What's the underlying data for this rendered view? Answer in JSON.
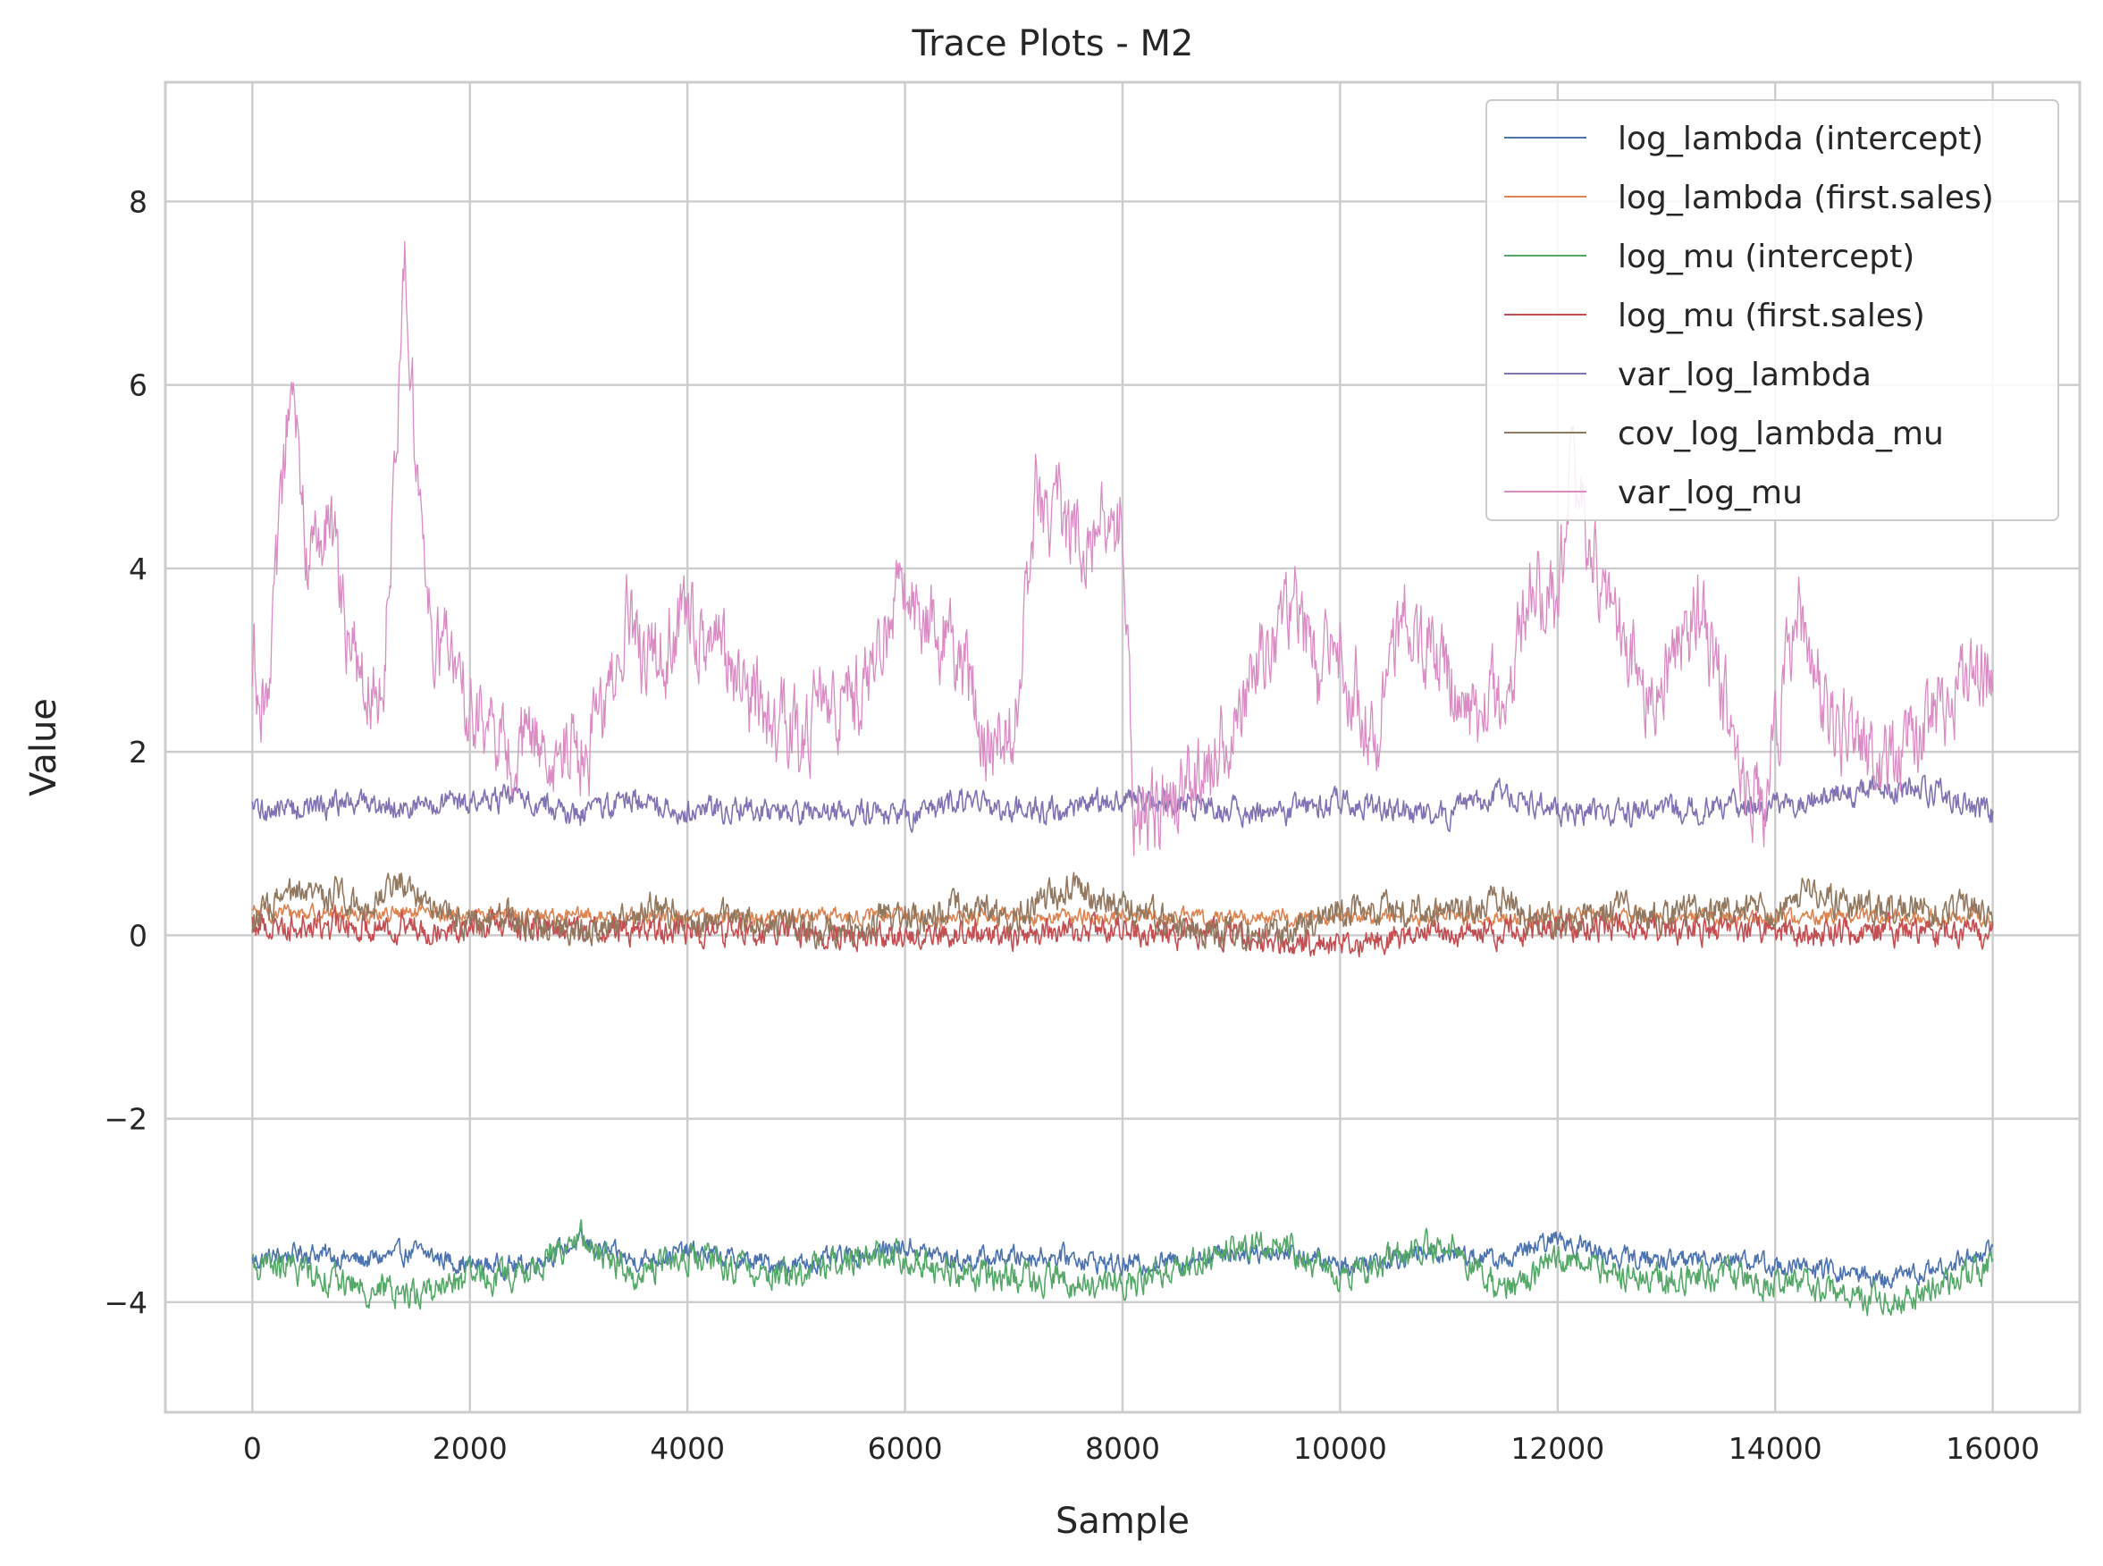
{
  "chart_data": {
    "type": "line",
    "title": "Trace Plots - M2",
    "xlabel": "Sample",
    "ylabel": "Value",
    "xlim": [
      -800,
      16800
    ],
    "ylim": [
      -5.2,
      9.3
    ],
    "xticks": [
      0,
      2000,
      4000,
      6000,
      8000,
      10000,
      12000,
      14000,
      16000
    ],
    "yticks": [
      -4,
      -2,
      0,
      2,
      4,
      6,
      8
    ],
    "grid": true,
    "legend_position": "top-right",
    "n_samples": 16000,
    "series": [
      {
        "name": "log_lambda (intercept)",
        "color": "#4c72b0",
        "anchors": [
          [
            0,
            -3.55
          ],
          [
            500,
            -3.45
          ],
          [
            1000,
            -3.55
          ],
          [
            1500,
            -3.45
          ],
          [
            2000,
            -3.6
          ],
          [
            2500,
            -3.6
          ],
          [
            3000,
            -3.35
          ],
          [
            3500,
            -3.55
          ],
          [
            4000,
            -3.45
          ],
          [
            4500,
            -3.55
          ],
          [
            5000,
            -3.6
          ],
          [
            5500,
            -3.5
          ],
          [
            6000,
            -3.4
          ],
          [
            6500,
            -3.55
          ],
          [
            7000,
            -3.5
          ],
          [
            7500,
            -3.5
          ],
          [
            8000,
            -3.6
          ],
          [
            8500,
            -3.55
          ],
          [
            9000,
            -3.45
          ],
          [
            9500,
            -3.45
          ],
          [
            10000,
            -3.6
          ],
          [
            10500,
            -3.5
          ],
          [
            11000,
            -3.45
          ],
          [
            11500,
            -3.55
          ],
          [
            12000,
            -3.3
          ],
          [
            12500,
            -3.5
          ],
          [
            13000,
            -3.55
          ],
          [
            13500,
            -3.5
          ],
          [
            14000,
            -3.6
          ],
          [
            14500,
            -3.65
          ],
          [
            15000,
            -3.75
          ],
          [
            15500,
            -3.65
          ],
          [
            16000,
            -3.4
          ]
        ],
        "noise": 0.09,
        "width": 1.6
      },
      {
        "name": "log_lambda (first.sales)",
        "color": "#dd8452",
        "anchors": [
          [
            0,
            0.25
          ],
          [
            4000,
            0.2
          ],
          [
            8000,
            0.2
          ],
          [
            12000,
            0.2
          ],
          [
            16000,
            0.2
          ]
        ],
        "noise": 0.07,
        "width": 1.6
      },
      {
        "name": "log_mu (intercept)",
        "color": "#55a868",
        "anchors": [
          [
            0,
            -3.6
          ],
          [
            500,
            -3.65
          ],
          [
            1000,
            -3.85
          ],
          [
            1500,
            -3.9
          ],
          [
            2000,
            -3.75
          ],
          [
            2500,
            -3.7
          ],
          [
            3000,
            -3.3
          ],
          [
            3500,
            -3.7
          ],
          [
            4000,
            -3.5
          ],
          [
            4500,
            -3.65
          ],
          [
            5000,
            -3.7
          ],
          [
            5500,
            -3.5
          ],
          [
            6000,
            -3.5
          ],
          [
            6500,
            -3.7
          ],
          [
            7000,
            -3.7
          ],
          [
            7500,
            -3.8
          ],
          [
            8000,
            -3.8
          ],
          [
            8500,
            -3.6
          ],
          [
            9000,
            -3.4
          ],
          [
            9500,
            -3.35
          ],
          [
            10000,
            -3.75
          ],
          [
            10500,
            -3.5
          ],
          [
            11000,
            -3.35
          ],
          [
            11500,
            -3.9
          ],
          [
            12000,
            -3.5
          ],
          [
            12500,
            -3.65
          ],
          [
            13000,
            -3.75
          ],
          [
            13500,
            -3.7
          ],
          [
            14000,
            -3.8
          ],
          [
            14500,
            -3.85
          ],
          [
            15000,
            -4.0
          ],
          [
            15500,
            -3.85
          ],
          [
            16000,
            -3.6
          ]
        ],
        "noise": 0.13,
        "width": 1.6
      },
      {
        "name": "log_mu (first.sales)",
        "color": "#c44e52",
        "anchors": [
          [
            0,
            0.1
          ],
          [
            2000,
            0.1
          ],
          [
            4000,
            0.05
          ],
          [
            6000,
            0.0
          ],
          [
            8000,
            0.05
          ],
          [
            10000,
            -0.1
          ],
          [
            12000,
            0.1
          ],
          [
            14000,
            0.05
          ],
          [
            16000,
            0.0
          ]
        ],
        "noise": 0.12,
        "width": 1.6
      },
      {
        "name": "var_log_lambda",
        "color": "#8172b3",
        "anchors": [
          [
            0,
            1.35
          ],
          [
            500,
            1.4
          ],
          [
            1000,
            1.45
          ],
          [
            1500,
            1.4
          ],
          [
            2000,
            1.45
          ],
          [
            2500,
            1.5
          ],
          [
            3000,
            1.3
          ],
          [
            3500,
            1.5
          ],
          [
            4000,
            1.35
          ],
          [
            4500,
            1.4
          ],
          [
            5000,
            1.3
          ],
          [
            5500,
            1.35
          ],
          [
            6000,
            1.3
          ],
          [
            6500,
            1.45
          ],
          [
            7000,
            1.35
          ],
          [
            7500,
            1.35
          ],
          [
            8000,
            1.5
          ],
          [
            8500,
            1.45
          ],
          [
            9000,
            1.35
          ],
          [
            9500,
            1.35
          ],
          [
            10000,
            1.45
          ],
          [
            10500,
            1.35
          ],
          [
            11000,
            1.3
          ],
          [
            11500,
            1.55
          ],
          [
            12000,
            1.35
          ],
          [
            12500,
            1.3
          ],
          [
            13000,
            1.35
          ],
          [
            13500,
            1.4
          ],
          [
            14000,
            1.4
          ],
          [
            14500,
            1.5
          ],
          [
            15000,
            1.6
          ],
          [
            15500,
            1.55
          ],
          [
            16000,
            1.3
          ]
        ],
        "noise": 0.11,
        "width": 1.6
      },
      {
        "name": "cov_log_lambda_mu",
        "color": "#937860",
        "anchors": [
          [
            0,
            0.15
          ],
          [
            300,
            0.4
          ],
          [
            500,
            0.4
          ],
          [
            800,
            0.5
          ],
          [
            1000,
            0.3
          ],
          [
            1400,
            0.6
          ],
          [
            1700,
            0.3
          ],
          [
            2000,
            0.1
          ],
          [
            2400,
            0.2
          ],
          [
            3000,
            0.0
          ],
          [
            3500,
            0.2
          ],
          [
            3700,
            0.35
          ],
          [
            4000,
            0.1
          ],
          [
            4500,
            0.2
          ],
          [
            5000,
            0.05
          ],
          [
            5500,
            0.1
          ],
          [
            6000,
            0.2
          ],
          [
            6500,
            0.3
          ],
          [
            7000,
            0.2
          ],
          [
            7500,
            0.5
          ],
          [
            8000,
            0.3
          ],
          [
            8500,
            0.1
          ],
          [
            9000,
            0.0
          ],
          [
            9500,
            0.05
          ],
          [
            10000,
            0.25
          ],
          [
            10500,
            0.25
          ],
          [
            11000,
            0.2
          ],
          [
            11500,
            0.4
          ],
          [
            12000,
            0.1
          ],
          [
            12500,
            0.3
          ],
          [
            13000,
            0.15
          ],
          [
            13500,
            0.35
          ],
          [
            14000,
            0.2
          ],
          [
            14300,
            0.5
          ],
          [
            14600,
            0.35
          ],
          [
            15000,
            0.3
          ],
          [
            15500,
            0.3
          ],
          [
            16000,
            0.25
          ]
        ],
        "noise": 0.14,
        "width": 1.6
      },
      {
        "name": "var_log_mu",
        "color": "#da8bc3",
        "anchors": [
          [
            0,
            3.0
          ],
          [
            150,
            2.5
          ],
          [
            350,
            6.0
          ],
          [
            500,
            4.2
          ],
          [
            700,
            4.5
          ],
          [
            900,
            3.0
          ],
          [
            1200,
            2.7
          ],
          [
            1400,
            7.3
          ],
          [
            1600,
            3.5
          ],
          [
            1800,
            3.0
          ],
          [
            2000,
            2.5
          ],
          [
            2300,
            2.0
          ],
          [
            2700,
            2.1
          ],
          [
            3000,
            2.0
          ],
          [
            3200,
            2.2
          ],
          [
            3450,
            3.5
          ],
          [
            3600,
            2.9
          ],
          [
            4000,
            3.4
          ],
          [
            4500,
            2.7
          ],
          [
            5000,
            2.1
          ],
          [
            5200,
            2.5
          ],
          [
            5600,
            2.6
          ],
          [
            6000,
            3.8
          ],
          [
            6500,
            3.1
          ],
          [
            6800,
            2.0
          ],
          [
            7000,
            2.2
          ],
          [
            7200,
            4.8
          ],
          [
            7600,
            4.3
          ],
          [
            8000,
            4.5
          ],
          [
            8100,
            1.3
          ],
          [
            8500,
            1.5
          ],
          [
            9000,
            2.2
          ],
          [
            9300,
            3.0
          ],
          [
            9600,
            3.6
          ],
          [
            9800,
            2.8
          ],
          [
            10000,
            3.2
          ],
          [
            10300,
            2.1
          ],
          [
            10600,
            3.4
          ],
          [
            10900,
            3.0
          ],
          [
            11200,
            2.4
          ],
          [
            11500,
            2.6
          ],
          [
            11800,
            4.0
          ],
          [
            12000,
            3.5
          ],
          [
            12100,
            5.0
          ],
          [
            12500,
            3.5
          ],
          [
            12900,
            2.5
          ],
          [
            13300,
            3.6
          ],
          [
            13600,
            2.2
          ],
          [
            13900,
            1.3
          ],
          [
            14200,
            3.7
          ],
          [
            14500,
            2.3
          ],
          [
            14900,
            1.8
          ],
          [
            15200,
            2.0
          ],
          [
            15500,
            2.4
          ],
          [
            15800,
            3.0
          ],
          [
            16000,
            2.9
          ]
        ],
        "noise": 0.38,
        "width": 1.3
      }
    ]
  }
}
